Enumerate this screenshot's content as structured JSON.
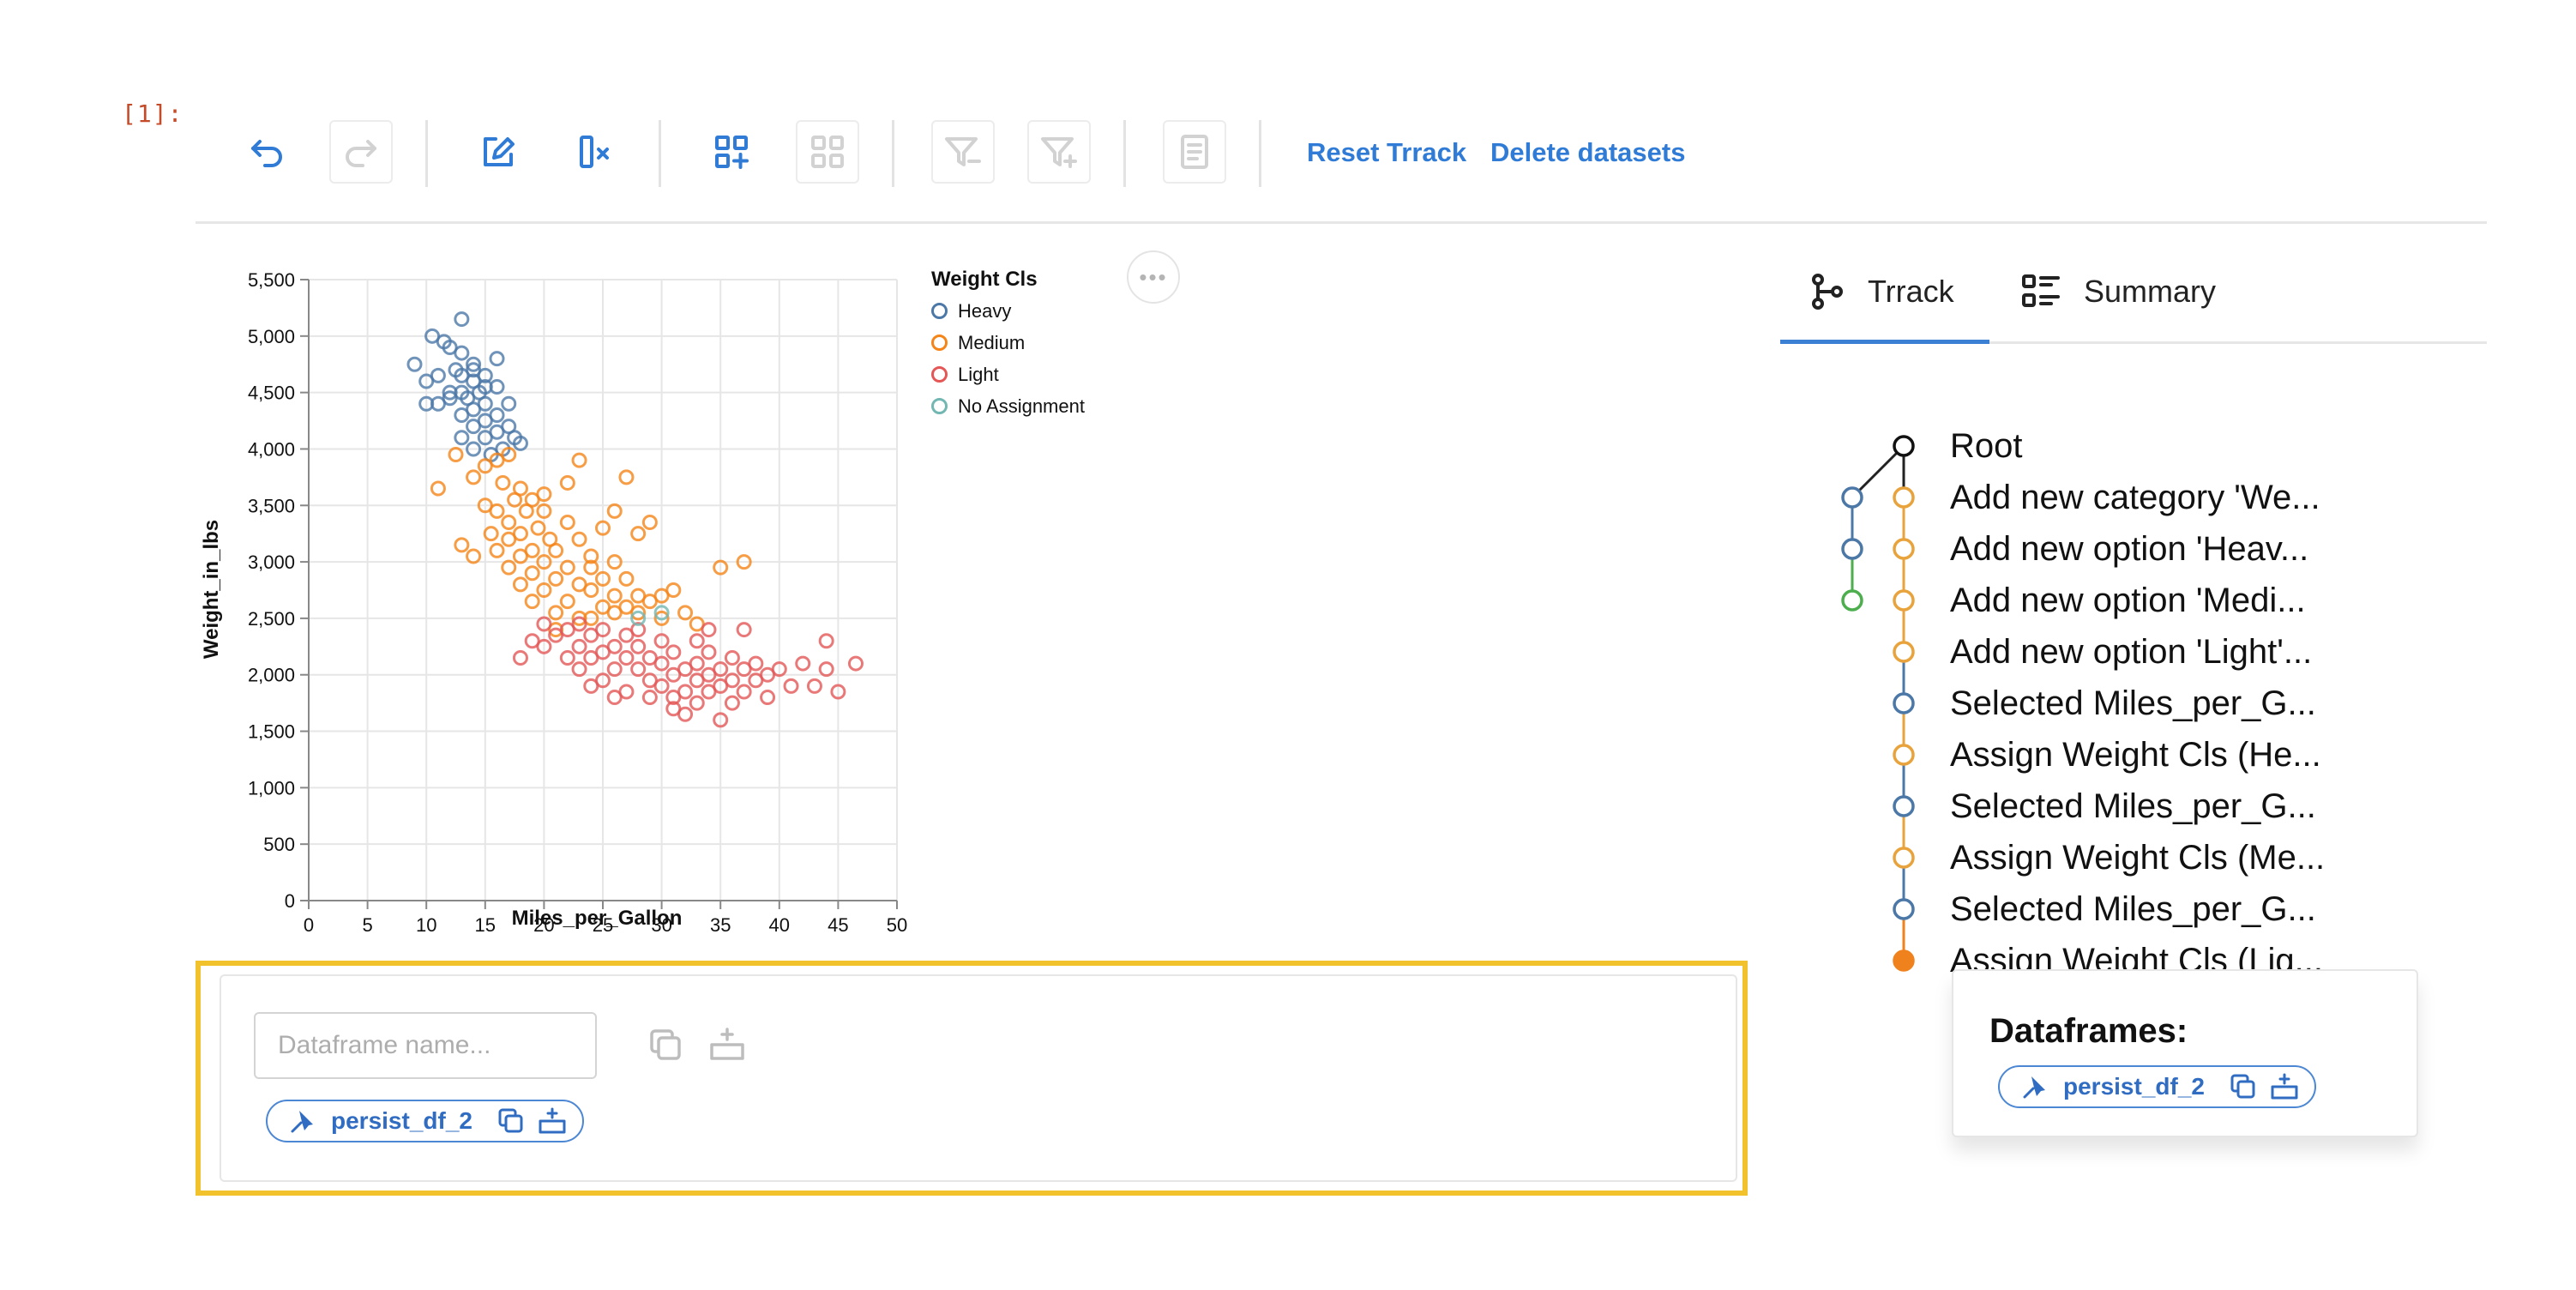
{
  "cell": {
    "prompt": "[1]:"
  },
  "toolbar": {
    "buttons": [
      {
        "icon": "undo-icon",
        "enabled": true
      },
      {
        "icon": "redo-icon",
        "enabled": false
      },
      {
        "icon": "edit-icon",
        "enabled": true
      },
      {
        "icon": "clear-selection-icon",
        "enabled": true
      },
      {
        "icon": "add-category-icon",
        "enabled": true
      },
      {
        "icon": "grid-icon",
        "enabled": false
      },
      {
        "icon": "filter-out-icon",
        "enabled": false
      },
      {
        "icon": "filter-in-icon",
        "enabled": false
      },
      {
        "icon": "document-icon",
        "enabled": false
      }
    ],
    "reset_label": "Reset Trrack",
    "delete_label": "Delete datasets"
  },
  "colors": {
    "accent": "#2f7bd6",
    "heavy": "#4c78a8",
    "medium": "#f58518",
    "light": "#e45756",
    "no_assignment": "#72b7b2",
    "highlight": "#f2c22c"
  },
  "legend": {
    "title": "Weight Cls",
    "items": [
      {
        "label": "Heavy",
        "color": "#4c78a8"
      },
      {
        "label": "Medium",
        "color": "#f58518"
      },
      {
        "label": "Light",
        "color": "#e45756"
      },
      {
        "label": "No Assignment",
        "color": "#72b7b2"
      }
    ]
  },
  "chart_data": {
    "type": "scatter",
    "xlabel": "Miles_per_Gallon",
    "ylabel": "Weight_in_lbs",
    "xlim": [
      0,
      50
    ],
    "ylim": [
      0,
      5500
    ],
    "x_ticks": [
      "0",
      "5",
      "10",
      "15",
      "20",
      "25",
      "30",
      "35",
      "40",
      "45",
      "50"
    ],
    "y_ticks": [
      "0",
      "500",
      "1,000",
      "1,500",
      "2,000",
      "2,500",
      "3,000",
      "3,500",
      "4,000",
      "4,500",
      "5,000",
      "5,500"
    ],
    "grid": true,
    "legend_position": "right",
    "series": [
      {
        "name": "Heavy",
        "color": "#4c78a8",
        "points": [
          [
            9,
            4750
          ],
          [
            10,
            4600
          ],
          [
            10,
            4400
          ],
          [
            10.5,
            5000
          ],
          [
            11,
            4650
          ],
          [
            11,
            4400
          ],
          [
            11.5,
            4950
          ],
          [
            12,
            4900
          ],
          [
            12,
            4500
          ],
          [
            12.5,
            4700
          ],
          [
            13,
            5150
          ],
          [
            13,
            4850
          ],
          [
            13,
            4500
          ],
          [
            13,
            4300
          ],
          [
            13,
            4100
          ],
          [
            13.5,
            4450
          ],
          [
            14,
            4750
          ],
          [
            14,
            4600
          ],
          [
            14,
            4350
          ],
          [
            14,
            4200
          ],
          [
            14,
            4000
          ],
          [
            14.5,
            4500
          ],
          [
            15,
            4650
          ],
          [
            15,
            4400
          ],
          [
            15,
            4250
          ],
          [
            15,
            4100
          ],
          [
            15.5,
            3950
          ],
          [
            16,
            4800
          ],
          [
            16,
            4550
          ],
          [
            16,
            4300
          ],
          [
            16,
            4150
          ],
          [
            16.5,
            4000
          ],
          [
            17,
            4400
          ],
          [
            17,
            4200
          ],
          [
            17.5,
            4100
          ],
          [
            18,
            4050
          ],
          [
            13,
            4650
          ],
          [
            14,
            4700
          ],
          [
            12,
            4450
          ],
          [
            15,
            4550
          ]
        ]
      },
      {
        "name": "Medium",
        "color": "#f58518",
        "points": [
          [
            11,
            3650
          ],
          [
            12.5,
            3950
          ],
          [
            13,
            3150
          ],
          [
            14,
            3750
          ],
          [
            14,
            3050
          ],
          [
            15,
            3500
          ],
          [
            15,
            3850
          ],
          [
            15.5,
            3250
          ],
          [
            16,
            3900
          ],
          [
            16,
            3450
          ],
          [
            16,
            3100
          ],
          [
            16.5,
            3700
          ],
          [
            17,
            3950
          ],
          [
            17,
            3350
          ],
          [
            17,
            2950
          ],
          [
            17.5,
            3550
          ],
          [
            18,
            3650
          ],
          [
            18,
            3250
          ],
          [
            18,
            2800
          ],
          [
            18.5,
            3450
          ],
          [
            19,
            3550
          ],
          [
            19,
            3100
          ],
          [
            19,
            2650
          ],
          [
            19.5,
            3300
          ],
          [
            20,
            3450
          ],
          [
            20,
            3000
          ],
          [
            20,
            2750
          ],
          [
            20.5,
            3200
          ],
          [
            21,
            3100
          ],
          [
            21,
            2850
          ],
          [
            21,
            2550
          ],
          [
            22,
            3350
          ],
          [
            22,
            2950
          ],
          [
            22,
            2650
          ],
          [
            23,
            3200
          ],
          [
            23,
            2800
          ],
          [
            23,
            2500
          ],
          [
            24,
            3050
          ],
          [
            24,
            2750
          ],
          [
            24,
            2500
          ],
          [
            25,
            3300
          ],
          [
            25,
            2850
          ],
          [
            25,
            2600
          ],
          [
            26,
            3000
          ],
          [
            26,
            2700
          ],
          [
            27,
            2850
          ],
          [
            27,
            2600
          ],
          [
            28,
            3250
          ],
          [
            28,
            2700
          ],
          [
            29,
            2650
          ],
          [
            30,
            2700
          ],
          [
            30,
            2500
          ],
          [
            31,
            2750
          ],
          [
            32,
            2550
          ],
          [
            33,
            2450
          ],
          [
            35,
            2950
          ],
          [
            37,
            3000
          ],
          [
            23,
            3900
          ],
          [
            27,
            3750
          ],
          [
            22,
            3700
          ],
          [
            20,
            3600
          ],
          [
            24,
            2950
          ],
          [
            26,
            2550
          ],
          [
            28,
            2550
          ],
          [
            21,
            2400
          ],
          [
            19,
            2900
          ],
          [
            18,
            3050
          ],
          [
            17,
            3200
          ],
          [
            26,
            3450
          ],
          [
            29,
            3350
          ]
        ]
      },
      {
        "name": "Light",
        "color": "#e45756",
        "points": [
          [
            18,
            2150
          ],
          [
            19,
            2300
          ],
          [
            20,
            2450
          ],
          [
            20,
            2250
          ],
          [
            21,
            2350
          ],
          [
            22,
            2150
          ],
          [
            22,
            2400
          ],
          [
            23,
            2250
          ],
          [
            23,
            2050
          ],
          [
            24,
            2350
          ],
          [
            24,
            2150
          ],
          [
            25,
            2400
          ],
          [
            25,
            2200
          ],
          [
            25,
            1950
          ],
          [
            26,
            2250
          ],
          [
            26,
            2050
          ],
          [
            27,
            2150
          ],
          [
            27,
            2350
          ],
          [
            27,
            1850
          ],
          [
            28,
            2050
          ],
          [
            28,
            2250
          ],
          [
            29,
            1950
          ],
          [
            29,
            2150
          ],
          [
            29,
            1800
          ],
          [
            30,
            2100
          ],
          [
            30,
            1900
          ],
          [
            31,
            2200
          ],
          [
            31,
            2000
          ],
          [
            31,
            1800
          ],
          [
            32,
            2050
          ],
          [
            32,
            1850
          ],
          [
            32,
            1650
          ],
          [
            33,
            2100
          ],
          [
            33,
            1950
          ],
          [
            33,
            1750
          ],
          [
            34,
            2000
          ],
          [
            34,
            2200
          ],
          [
            34,
            1850
          ],
          [
            35,
            2050
          ],
          [
            35,
            1900
          ],
          [
            35,
            1600
          ],
          [
            36,
            2150
          ],
          [
            36,
            1950
          ],
          [
            36,
            1750
          ],
          [
            37,
            2050
          ],
          [
            37,
            1850
          ],
          [
            38,
            2100
          ],
          [
            38,
            1950
          ],
          [
            39,
            2000
          ],
          [
            39,
            1800
          ],
          [
            40,
            2050
          ],
          [
            41,
            1900
          ],
          [
            42,
            2100
          ],
          [
            43,
            1900
          ],
          [
            44,
            2300
          ],
          [
            44,
            2050
          ],
          [
            45,
            1850
          ],
          [
            46.5,
            2100
          ],
          [
            23,
            2450
          ],
          [
            28,
            2400
          ],
          [
            30,
            2300
          ],
          [
            34,
            2400
          ],
          [
            37,
            2400
          ],
          [
            24,
            1900
          ],
          [
            26,
            1800
          ],
          [
            31,
            1700
          ],
          [
            33,
            2300
          ]
        ]
      },
      {
        "name": "No Assignment",
        "color": "#72b7b2",
        "points": [
          [
            28,
            2500
          ],
          [
            30,
            2550
          ]
        ]
      }
    ]
  },
  "more_button": {
    "label": "•••"
  },
  "dataframe_panel": {
    "input_placeholder": "Dataframe name...",
    "chip_label": "persist_df_2"
  },
  "tabs": [
    {
      "label": "Trrack",
      "icon": "branch-icon",
      "active": true
    },
    {
      "label": "Summary",
      "icon": "summary-list-icon",
      "active": false
    }
  ],
  "tree": {
    "nodes": [
      {
        "label": "Root",
        "color": "#111111",
        "filled": false
      },
      {
        "label": "Add new category 'We...",
        "color": "#e8a33d",
        "filled": false
      },
      {
        "label": "Add new option 'Heav...",
        "color": "#e8a33d",
        "filled": false
      },
      {
        "label": "Add new option 'Medi...",
        "color": "#e8a33d",
        "filled": false
      },
      {
        "label": "Add new option 'Light'...",
        "color": "#e8a33d",
        "filled": false
      },
      {
        "label": "Selected Miles_per_G...",
        "color": "#4c78a8",
        "filled": false
      },
      {
        "label": "Assign Weight Cls (He...",
        "color": "#e8a33d",
        "filled": false
      },
      {
        "label": "Selected Miles_per_G...",
        "color": "#4c78a8",
        "filled": false
      },
      {
        "label": "Assign Weight Cls (Me...",
        "color": "#e8a33d",
        "filled": false
      },
      {
        "label": "Selected Miles_per_G...",
        "color": "#4c78a8",
        "filled": false
      },
      {
        "label": "Assign Weight Cls (Lig...",
        "color": "#f0821e",
        "filled": true
      }
    ],
    "side_branch": [
      {
        "color": "#4c78a8"
      },
      {
        "color": "#4c78a8"
      },
      {
        "color": "#4cae4c"
      }
    ]
  },
  "dataframes_popup": {
    "title": "Dataframes:",
    "chip_label": "persist_df_2"
  }
}
